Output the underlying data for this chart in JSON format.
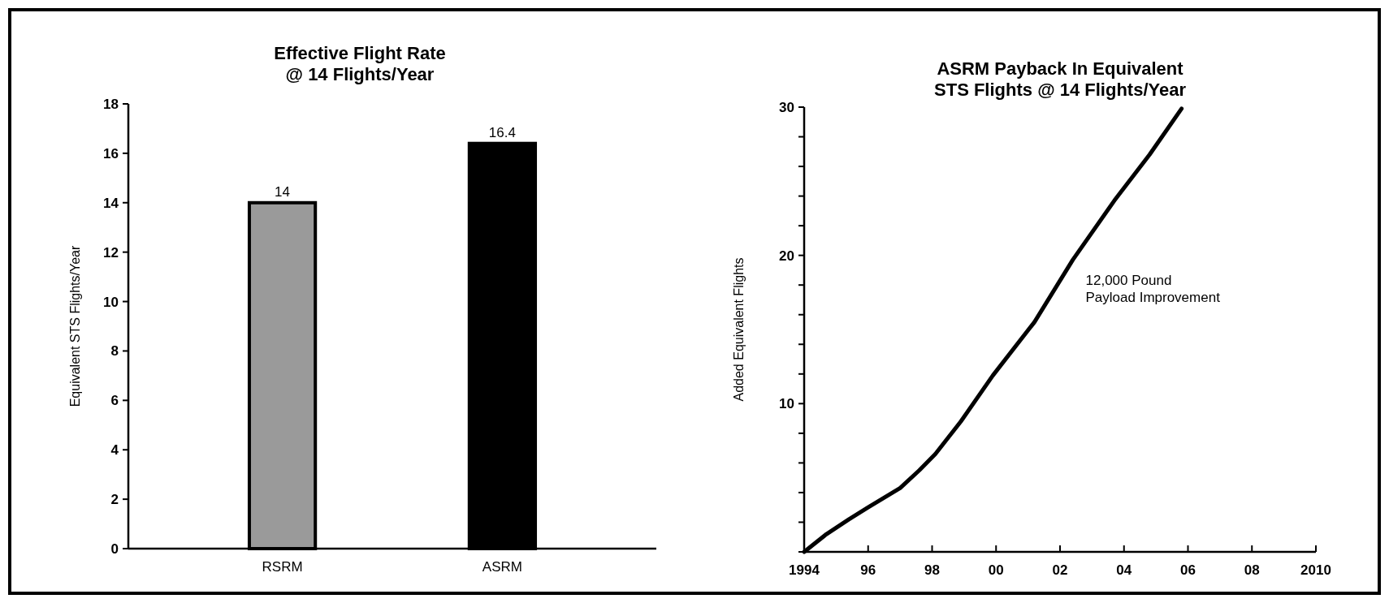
{
  "chart_data": [
    {
      "type": "bar",
      "title": "Effective Flight Rate\n@ 14 Flights/Year",
      "ylabel": "Equivalent STS Flights/Year",
      "categories": [
        "RSRM",
        "ASRM"
      ],
      "values": [
        14,
        16.4
      ],
      "colors": [
        "#9a9a9a",
        "#000000"
      ],
      "ylim": [
        0,
        18
      ],
      "yticks": [
        0,
        2,
        4,
        6,
        8,
        10,
        12,
        14,
        16,
        18
      ],
      "data_labels": true
    },
    {
      "type": "line",
      "title": "ASRM Payback In Equivalent\nSTS Flights @ 14 Flights/Year",
      "ylabel": "Added Equivalent Flights",
      "annotations": [
        "12,000 Pound\nPayload Improvement"
      ],
      "series": [
        {
          "color": "#000000",
          "x": [
            1994,
            1994.7,
            1995.4,
            1996,
            1997,
            1997.6,
            1998.1,
            1998.9,
            1999.9,
            2001.2,
            2002.4,
            2003.7,
            2004.8,
            2005.8
          ],
          "values": [
            0,
            1.2,
            2.2,
            3,
            4.3,
            5.5,
            6.6,
            8.8,
            11.9,
            15.5,
            19.7,
            23.7,
            26.8,
            29.9
          ]
        }
      ],
      "xlim": [
        1994,
        2010
      ],
      "xticks": [
        {
          "value": 1994,
          "label": "1994"
        },
        {
          "value": 1996,
          "label": "96"
        },
        {
          "value": 1998,
          "label": "98"
        },
        {
          "value": 2000,
          "label": "00"
        },
        {
          "value": 2002,
          "label": "02"
        },
        {
          "value": 2004,
          "label": "04"
        },
        {
          "value": 2006,
          "label": "06"
        },
        {
          "value": 2008,
          "label": "08"
        },
        2010
      ],
      "ylim": [
        0,
        30
      ],
      "yticks": [
        {
          "value": 0,
          "label": null
        },
        {
          "value": 2,
          "label": null
        },
        {
          "value": 4,
          "label": null
        },
        {
          "value": 6,
          "label": null
        },
        {
          "value": 8,
          "label": null
        },
        10,
        {
          "value": 12,
          "label": null
        },
        {
          "value": 14,
          "label": null
        },
        {
          "value": 16,
          "label": null
        },
        {
          "value": 18,
          "label": null
        },
        20,
        {
          "value": 22,
          "label": null
        },
        {
          "value": 24,
          "label": null
        },
        {
          "value": 26,
          "label": null
        },
        {
          "value": 28,
          "label": null
        },
        30
      ],
      "marker": "none",
      "line_style": "solid"
    }
  ]
}
